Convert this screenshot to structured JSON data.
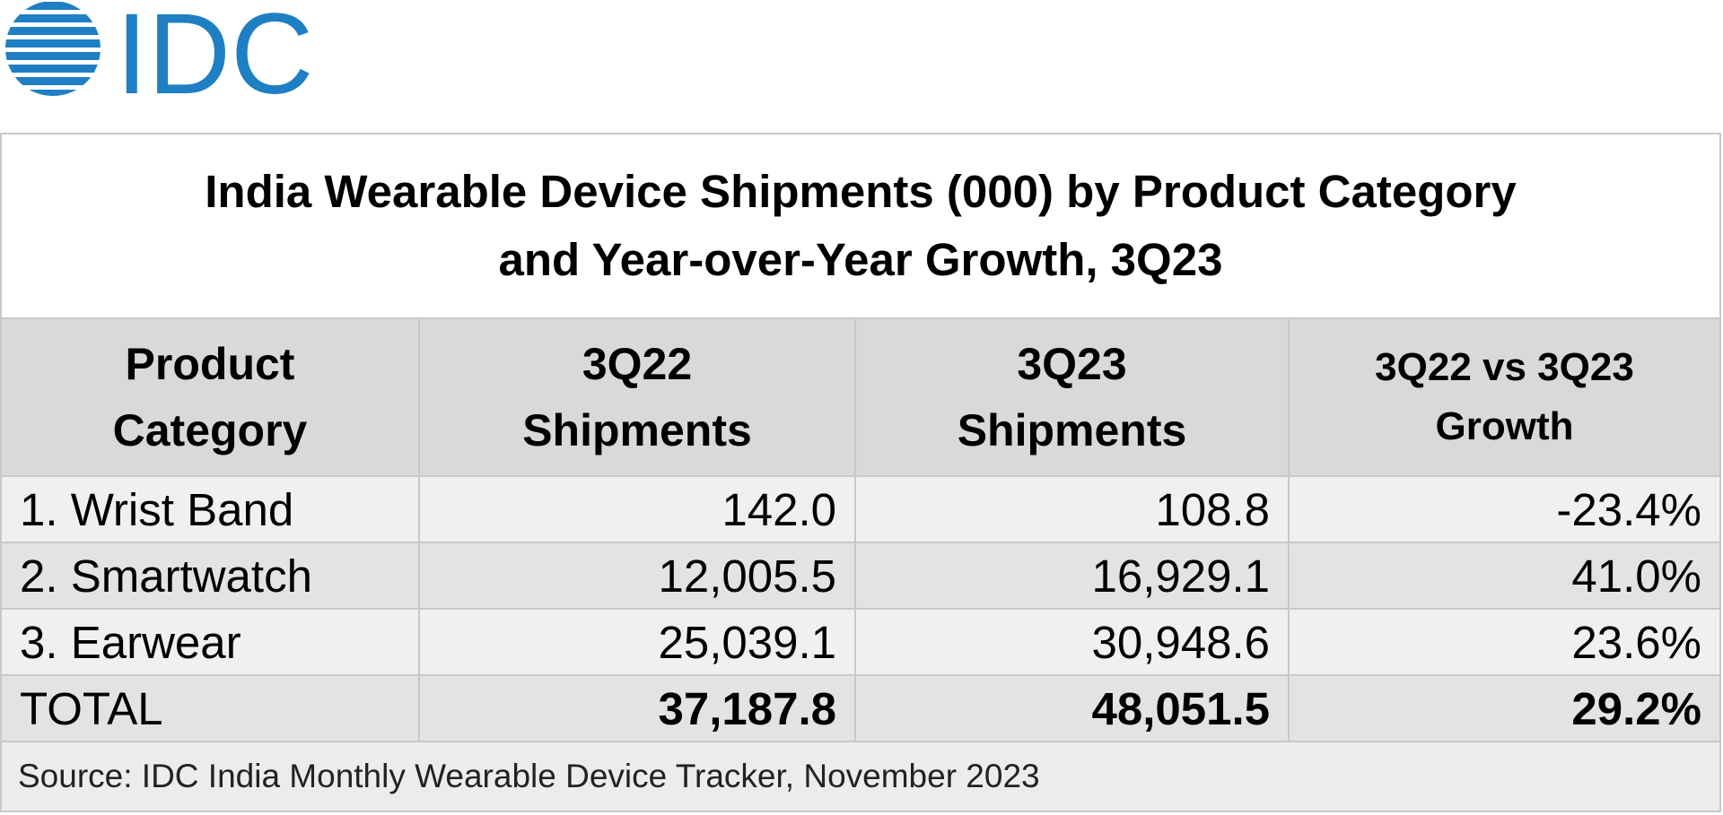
{
  "logo": {
    "text": "IDC",
    "color": "#1f7fc4"
  },
  "title": {
    "line1": "India Wearable Device Shipments (000) by Product Category",
    "line2": "and Year-over-Year Growth, 3Q23"
  },
  "columns": [
    {
      "line1": "Product",
      "line2": "Category"
    },
    {
      "line1": "3Q22",
      "line2": "Shipments"
    },
    {
      "line1": "3Q23",
      "line2": "Shipments"
    },
    {
      "line1": "3Q22 vs 3Q23",
      "line2": "Growth"
    }
  ],
  "rows": [
    {
      "category": "1. Wrist Band",
      "q3_22": "142.0",
      "q3_23": "108.8",
      "growth": "-23.4%"
    },
    {
      "category": "2. Smartwatch",
      "q3_22": "12,005.5",
      "q3_23": "16,929.1",
      "growth": "41.0%"
    },
    {
      "category": "3. Earwear",
      "q3_22": "25,039.1",
      "q3_23": "30,948.6",
      "growth": "23.6%"
    }
  ],
  "total": {
    "category": "TOTAL",
    "q3_22": "37,187.8",
    "q3_23": "48,051.5",
    "growth": "29.2%"
  },
  "source": "Source: IDC India Monthly Wearable Device Tracker, November 2023"
}
